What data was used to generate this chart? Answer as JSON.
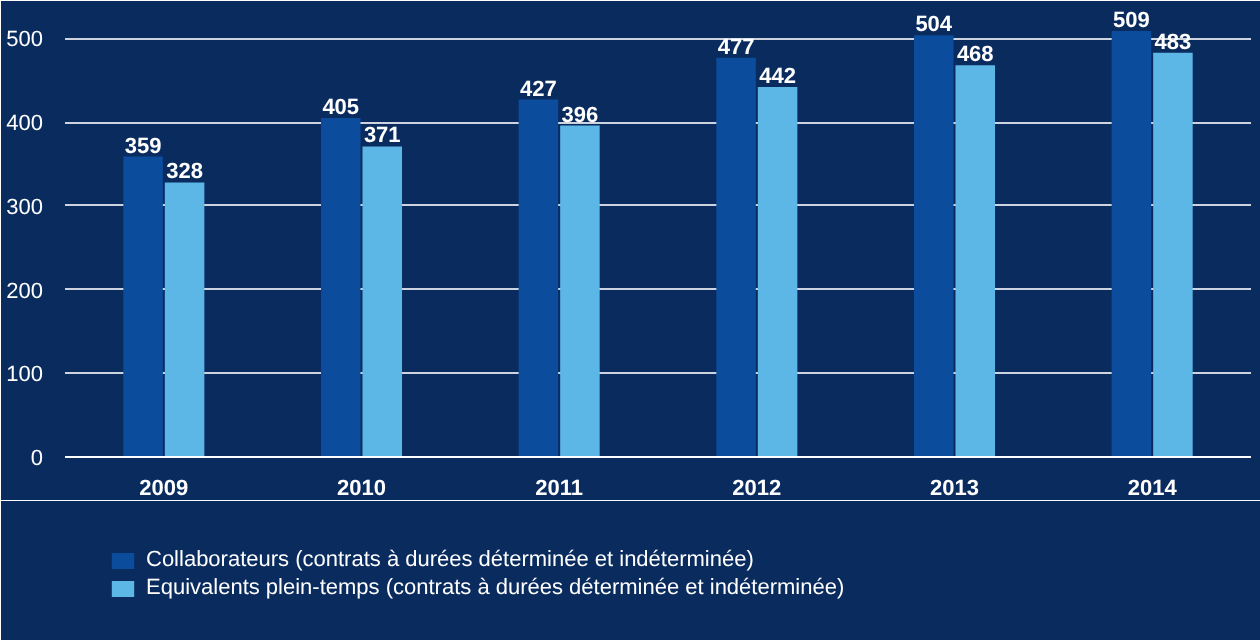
{
  "chart_data": {
    "type": "bar",
    "categories": [
      "2009",
      "2010",
      "2011",
      "2012",
      "2013",
      "2014"
    ],
    "series": [
      {
        "name": "Collaborateurs (contrats à durées déterminée et indéterminée)",
        "color": "#0b4c9c",
        "values": [
          359,
          405,
          427,
          477,
          504,
          509
        ]
      },
      {
        "name": "Equivalents plein-temps (contrats à durées déterminée et indéterminée)",
        "color": "#5cb6e6",
        "values": [
          328,
          371,
          396,
          442,
          468,
          483
        ]
      }
    ],
    "ylim": [
      0,
      540
    ],
    "yticks": [
      0,
      100,
      200,
      300,
      400,
      500
    ],
    "grid": "y",
    "legend": "bottom",
    "data_labels": true
  }
}
